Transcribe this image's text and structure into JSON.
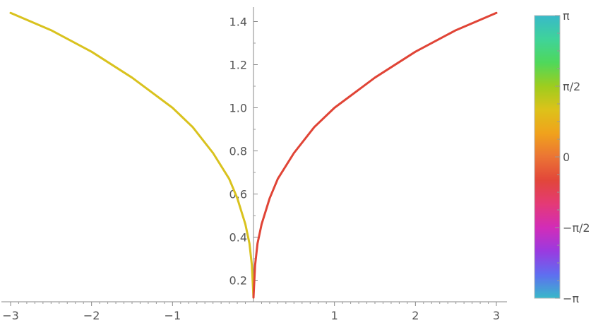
{
  "chart_data": {
    "type": "line",
    "title": "",
    "xlabel": "",
    "ylabel": "",
    "xlim": [
      -3.0,
      3.0
    ],
    "ylim": [
      0.1,
      1.5
    ],
    "x_ticks": [
      "−3",
      "−2",
      "−1",
      "1",
      "2",
      "3"
    ],
    "y_ticks": [
      "0.2",
      "0.4",
      "0.6",
      "0.8",
      "1.0",
      "1.2",
      "1.4"
    ],
    "series": [
      {
        "color": "#d9c21e",
        "x": [
          -3.0,
          -2.5,
          -2.0,
          -1.5,
          -1.0,
          -0.75,
          -0.5,
          -0.3,
          -0.2,
          -0.1,
          -0.05,
          -0.02,
          0.0
        ],
        "y": [
          1.44,
          1.36,
          1.26,
          1.14,
          1.0,
          0.91,
          0.79,
          0.67,
          0.58,
          0.46,
          0.37,
          0.27,
          0.12
        ]
      },
      {
        "color": "#e04436",
        "x": [
          0.0,
          0.02,
          0.05,
          0.1,
          0.2,
          0.3,
          0.5,
          0.75,
          1.0,
          1.5,
          2.0,
          2.5,
          3.0
        ],
        "y": [
          0.12,
          0.27,
          0.37,
          0.46,
          0.58,
          0.67,
          0.79,
          0.91,
          1.0,
          1.14,
          1.26,
          1.36,
          1.44
        ]
      }
    ],
    "colorbar": {
      "labels": [
        "π",
        "π/2",
        "0",
        "−π/2",
        "−π"
      ],
      "values": [
        3.14159,
        1.5708,
        0,
        -1.5708,
        -3.14159
      ],
      "gradient": [
        "#38b9c9",
        "#3fd39a",
        "#4fd85b",
        "#9ecd1e",
        "#ddc21a",
        "#f0a21c",
        "#eb7434",
        "#e2463a",
        "#e43a76",
        "#d22cb8",
        "#9a3ae0",
        "#5f6ef0",
        "#38b9c9"
      ]
    }
  }
}
